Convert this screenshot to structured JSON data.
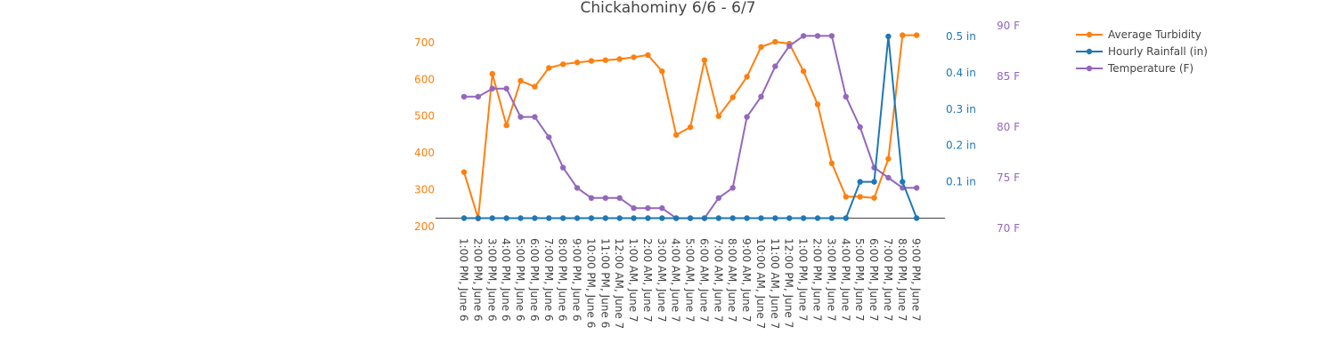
{
  "chart_data": {
    "type": "line",
    "title": "Chickahominy 6/6 - 6/7",
    "categories": [
      "1:00 PM, June 6",
      "2:00 PM, June 6",
      "3:00 PM, June 6",
      "4:00 PM, June 6",
      "5:00 PM, June 6",
      "6:00 PM, June 6",
      "7:00 PM, June 6",
      "8:00 PM, June 6",
      "9:00 PM, June 6",
      "10:00 PM, June 6",
      "11:00 PM, June 6",
      "12:00 AM, June 7",
      "1:00 AM, June 7",
      "2:00 AM, June 7",
      "3:00 AM, June 7",
      "4:00 AM, June 7",
      "5:00 AM, June 7",
      "6:00 AM, June 7",
      "7:00 AM, June 7",
      "8:00 AM, June 7",
      "9:00 AM, June 7",
      "10:00 AM, June 7",
      "11:00 AM, June 7",
      "12:00 PM, June 7",
      "1:00 PM, June 7",
      "2:00 PM, June 7",
      "3:00 PM, June 7",
      "4:00 PM, June 7",
      "5:00 PM, June 7",
      "6:00 PM, June 7",
      "7:00 PM, June 7",
      "8:00 PM, June 7",
      "9:00 PM, June 7"
    ],
    "axes": {
      "turbidity": {
        "ticks": [
          200,
          300,
          400,
          500,
          600,
          700
        ],
        "labels": [
          "200",
          "300",
          "400",
          "500",
          "600",
          "700"
        ],
        "color": "#ff7f0e"
      },
      "rainfall": {
        "ticks": [
          0.1,
          0.2,
          0.3,
          0.4,
          0.5
        ],
        "labels": [
          "0.1 in",
          "0.2 in",
          "0.3 in",
          "0.4 in",
          "0.5 in"
        ],
        "color": "#1f77b4"
      },
      "temperature": {
        "ticks": [
          70,
          75,
          80,
          85,
          90
        ],
        "labels": [
          "70 F",
          "75 F",
          "80 F",
          "85 F",
          "90 F"
        ],
        "color": "#9467bd"
      }
    },
    "series": [
      {
        "name": "Average Turbidity",
        "axis": "turbidity",
        "color": "#ff7f0e",
        "values": [
          348,
          222,
          615,
          475,
          596,
          580,
          631,
          641,
          646,
          650,
          652,
          655,
          660,
          666,
          622,
          449,
          470,
          652,
          500,
          551,
          607,
          688,
          702,
          697,
          622,
          532,
          372,
          281,
          281,
          278,
          384,
          720,
          720
        ]
      },
      {
        "name": "Hourly Rainfall (in)",
        "axis": "rainfall",
        "color": "#1f77b4",
        "values": [
          0,
          0,
          0,
          0,
          0,
          0,
          0,
          0,
          0,
          0,
          0,
          0,
          0,
          0,
          0,
          0,
          0,
          0,
          0,
          0,
          0,
          0,
          0,
          0,
          0,
          0,
          0,
          0,
          0.1,
          0.1,
          0.5,
          0.1,
          0
        ]
      },
      {
        "name": "Temperature (F)",
        "axis": "temperature",
        "color": "#9467bd",
        "values": [
          83,
          83,
          83.8,
          83.8,
          81,
          81,
          79,
          76,
          74,
          73,
          73,
          73,
          72,
          72,
          72,
          71,
          71,
          71,
          73,
          74,
          81,
          83,
          86,
          88,
          89,
          89,
          89,
          83,
          80,
          76,
          75,
          74,
          74
        ]
      }
    ],
    "legend": "top-right"
  }
}
